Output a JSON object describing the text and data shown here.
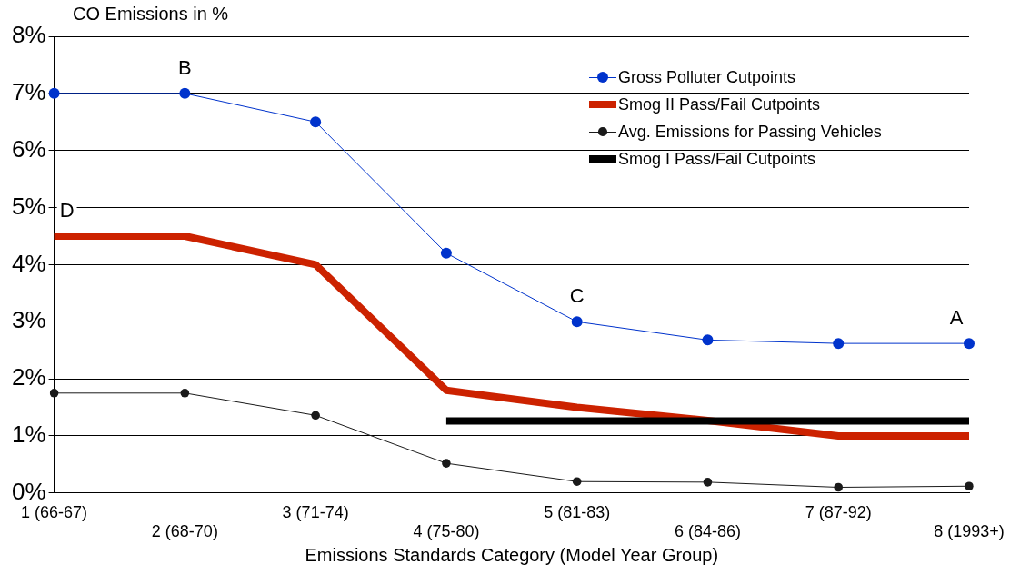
{
  "chart_data": {
    "type": "line",
    "ylabel": "CO Emissions in %",
    "xlabel": "Emissions Standards Category (Model Year Group)",
    "categories": [
      "1 (66-67)",
      "2 (68-70)",
      "3 (71-74)",
      "4 (75-80)",
      "5 (81-83)",
      "6 (84-86)",
      "7 (87-92)",
      "8 (1993+)"
    ],
    "series": [
      {
        "name": "Gross Polluter Cutpoints",
        "color": "#0033cc",
        "marker": "circle",
        "values": [
          7,
          7,
          6.5,
          4.2,
          3.0,
          2.68,
          2.62,
          2.62
        ]
      },
      {
        "name": "Smog II Pass/Fail Cutpoints",
        "color": "#cc2200",
        "marker": "none",
        "values": [
          4.5,
          4.5,
          4.0,
          1.8,
          1.5,
          1.27,
          1.0,
          1.0
        ]
      },
      {
        "name": "Avg. Emissions for Passing Vehicles",
        "color": "#1a1a1a",
        "marker": "circle",
        "values": [
          1.75,
          1.75,
          1.36,
          0.52,
          0.2,
          0.19,
          0.1,
          0.12
        ]
      },
      {
        "name": "Smog I Pass/Fail Cutpoints",
        "color": "#000000",
        "marker": "none",
        "values": [
          null,
          null,
          null,
          1.26,
          1.26,
          1.26,
          1.26,
          1.26
        ]
      }
    ],
    "ylim": [
      0,
      8
    ],
    "yticks": [
      {
        "value": 0,
        "label": "0%"
      },
      {
        "value": 1,
        "label": "1%"
      },
      {
        "value": 2,
        "label": "2%"
      },
      {
        "value": 3,
        "label": "3%"
      },
      {
        "value": 4,
        "label": "4%"
      },
      {
        "value": 5,
        "label": "5%"
      },
      {
        "value": 6,
        "label": "6%"
      },
      {
        "value": 7,
        "label": "7%"
      },
      {
        "value": 8,
        "label": "8%"
      }
    ],
    "grid": "y",
    "legend": "top right",
    "annotations": [
      {
        "text": "D",
        "x": "1 (66-67)",
        "y": 4.5
      },
      {
        "text": "B",
        "x": "2 (68-70)",
        "y": 7
      },
      {
        "text": "C",
        "x": "5 (81-83)",
        "y": 3.0
      },
      {
        "text": "A",
        "x": "8 (1993+)",
        "y": 2.62
      }
    ]
  }
}
